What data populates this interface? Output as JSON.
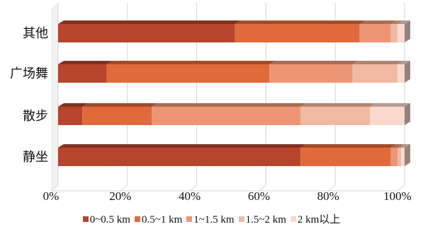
{
  "chart_data": {
    "type": "bar",
    "orientation": "horizontal",
    "stacked": "percent",
    "categories": [
      "其他",
      "广场舞",
      "散步",
      "静坐"
    ],
    "series": [
      {
        "name": "0~0.5 km",
        "values": [
          51,
          14,
          7,
          70
        ],
        "color": "#b5452c"
      },
      {
        "name": "0.5~1 km",
        "values": [
          36,
          47,
          20,
          26
        ],
        "color": "#e06a3a"
      },
      {
        "name": "1~1.5 km",
        "values": [
          9,
          24,
          43,
          2
        ],
        "color": "#ec9676"
      },
      {
        "name": "1.5~2 km",
        "values": [
          2,
          13,
          20,
          1
        ],
        "color": "#f2b9a2"
      },
      {
        "name": "2 km以上",
        "values": [
          2,
          2,
          10,
          1
        ],
        "color": "#f8d9cc"
      }
    ],
    "xlim": [
      0,
      100
    ],
    "xticks": [
      "0%",
      "20%",
      "40%",
      "60%",
      "80%",
      "100%"
    ],
    "grid": "vertical",
    "legend_position": "bottom"
  }
}
